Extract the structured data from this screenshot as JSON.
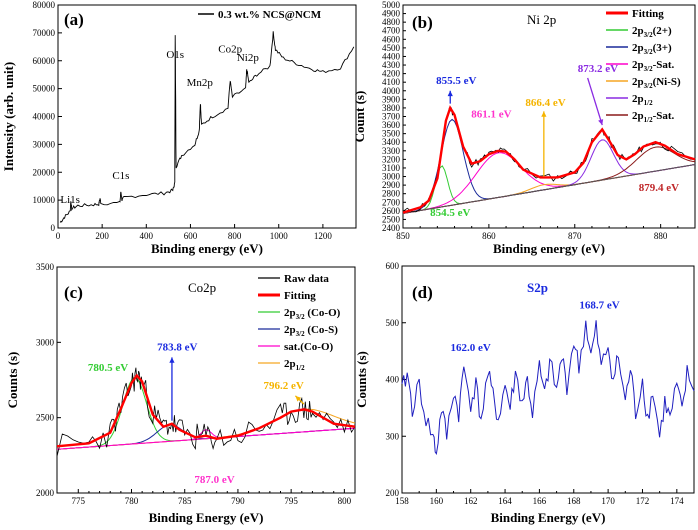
{
  "colors": {
    "black": "#000000",
    "red": "#ff0000",
    "green": "#33cc33",
    "blue": "#1f1fbf",
    "navy": "#1a2a9a",
    "magenta": "#ff00cc",
    "orange": "#f5a623",
    "purple": "#8a2be2",
    "darkred": "#8b1a1a",
    "annGreen": "#33cc33",
    "annBlue": "#1a2adf",
    "annMagenta": "#ff33cc",
    "annOrange": "#f5b400",
    "annPurple": "#8a2be2",
    "annDarkRed": "#c0282a"
  },
  "chart_data": [
    {
      "id": "a",
      "type": "line",
      "panel_label": "(a)",
      "xlabel": "Binding energy (eV)",
      "ylabel": "Intensity (arb. unit)",
      "xlim": [
        0,
        1350
      ],
      "ylim": [
        0,
        80000
      ],
      "xticks": [
        0,
        200,
        400,
        600,
        800,
        1000,
        1200
      ],
      "yticks": [
        0,
        10000,
        20000,
        30000,
        40000,
        50000,
        60000,
        70000,
        80000
      ],
      "legend": [
        "0.3 wt.% NCS@NCM"
      ],
      "series_points": [
        [
          10,
          2000
        ],
        [
          30,
          4000
        ],
        [
          55,
          6000
        ],
        [
          58,
          9500
        ],
        [
          62,
          7000
        ],
        [
          90,
          8000
        ],
        [
          150,
          8300
        ],
        [
          185,
          8600
        ],
        [
          190,
          10500
        ],
        [
          195,
          8800
        ],
        [
          280,
          9000
        ],
        [
          285,
          13000
        ],
        [
          290,
          10000
        ],
        [
          300,
          11000
        ],
        [
          400,
          12000
        ],
        [
          480,
          12500
        ],
        [
          520,
          13500
        ],
        [
          529,
          16000
        ],
        [
          531,
          69000
        ],
        [
          535,
          22000
        ],
        [
          560,
          26000
        ],
        [
          620,
          30000
        ],
        [
          640,
          35000
        ],
        [
          645,
          45000
        ],
        [
          650,
          37000
        ],
        [
          700,
          40000
        ],
        [
          770,
          43000
        ],
        [
          780,
          53000
        ],
        [
          790,
          47000
        ],
        [
          850,
          50000
        ],
        [
          855,
          57000
        ],
        [
          865,
          52000
        ],
        [
          900,
          55000
        ],
        [
          960,
          58000
        ],
        [
          975,
          70000
        ],
        [
          985,
          64000
        ],
        [
          1020,
          61000
        ],
        [
          1080,
          59000
        ],
        [
          1150,
          57000
        ],
        [
          1200,
          56000
        ],
        [
          1280,
          57500
        ],
        [
          1340,
          65000
        ]
      ],
      "annotations": [
        {
          "text": "Li1s",
          "x": 55,
          "y": 9000
        },
        {
          "text": "C1s",
          "x": 285,
          "y": 17500
        },
        {
          "text": "O1s",
          "x": 531,
          "y": 61000
        },
        {
          "text": "Mn2p",
          "x": 642,
          "y": 51000
        },
        {
          "text": "Co2p",
          "x": 780,
          "y": 63000
        },
        {
          "text": "Ni2p",
          "x": 860,
          "y": 60000
        }
      ]
    },
    {
      "id": "b",
      "type": "line",
      "panel_label": "(b)",
      "title": "Ni 2p",
      "xlabel": "Binding energy (eV)",
      "ylabel": "Count (s)",
      "xlim": [
        850,
        884
      ],
      "ylim": [
        2400,
        5000
      ],
      "xticks": [
        850,
        860,
        870,
        880
      ],
      "yticks": [
        2400,
        2500,
        2600,
        2700,
        2800,
        2900,
        3000,
        3100,
        3200,
        3300,
        3400,
        3500,
        3600,
        3700,
        3800,
        3900,
        4000,
        4100,
        4200,
        4300,
        4400,
        4500,
        4600,
        4700,
        4800,
        4900,
        5000
      ],
      "baseline": [
        [
          850,
          2570
        ],
        [
          884,
          3140
        ]
      ],
      "fitting": [
        [
          850,
          2580
        ],
        [
          852,
          2640
        ],
        [
          853,
          2720
        ],
        [
          854,
          2980
        ],
        [
          855,
          3650
        ],
        [
          855.5,
          3800
        ],
        [
          856,
          3720
        ],
        [
          857,
          3350
        ],
        [
          858,
          3150
        ],
        [
          859,
          3180
        ],
        [
          860,
          3260
        ],
        [
          861.1,
          3300
        ],
        [
          862,
          3290
        ],
        [
          863,
          3200
        ],
        [
          864,
          3080
        ],
        [
          866,
          2990
        ],
        [
          868,
          2990
        ],
        [
          870,
          3050
        ],
        [
          871,
          3160
        ],
        [
          872,
          3400
        ],
        [
          873.2,
          3550
        ],
        [
          874,
          3420
        ],
        [
          875,
          3250
        ],
        [
          876,
          3200
        ],
        [
          877,
          3260
        ],
        [
          878,
          3350
        ],
        [
          879.4,
          3400
        ],
        [
          880.5,
          3360
        ],
        [
          882,
          3260
        ],
        [
          884,
          3200
        ]
      ],
      "legend": [
        "Fitting",
        "2p3/2(2+)",
        "2p3/2(3+)",
        "2p3/2-Sat.",
        "2p3/2(Ni-S)",
        "2p1/2",
        "2p1/2-Sat."
      ],
      "annotations": [
        {
          "text": "855.5 eV",
          "x": 856.2,
          "y": 4080
        },
        {
          "text": "861.1 eV",
          "x": 860.3,
          "y": 3690
        },
        {
          "text": "866.4 eV",
          "x": 866.6,
          "y": 3820
        },
        {
          "text": "873.2 eV",
          "x": 872.7,
          "y": 4220
        },
        {
          "text": "854.5 eV",
          "x": 855.5,
          "y": 2540
        },
        {
          "text": "879.4 eV",
          "x": 879.8,
          "y": 2830
        }
      ]
    },
    {
      "id": "c",
      "type": "line",
      "panel_label": "(c)",
      "title": "Co2p",
      "xlabel": "Binding Energy (eV)",
      "ylabel": "Counts (s)",
      "xlim": [
        773,
        801
      ],
      "ylim": [
        2000,
        3500
      ],
      "xticks": [
        775,
        780,
        785,
        790,
        795,
        800
      ],
      "yticks": [
        2000,
        2500,
        3000,
        3500
      ],
      "baseline": [
        [
          773,
          2290
        ],
        [
          801,
          2430
        ]
      ],
      "fitting": [
        [
          773,
          2310
        ],
        [
          776,
          2330
        ],
        [
          778,
          2400
        ],
        [
          779,
          2560
        ],
        [
          780,
          2730
        ],
        [
          780.5,
          2780
        ],
        [
          781,
          2740
        ],
        [
          782,
          2520
        ],
        [
          783,
          2440
        ],
        [
          783.8,
          2460
        ],
        [
          784.5,
          2420
        ],
        [
          786,
          2370
        ],
        [
          787,
          2380
        ],
        [
          788,
          2360
        ],
        [
          790,
          2380
        ],
        [
          792,
          2430
        ],
        [
          794,
          2500
        ],
        [
          795,
          2540
        ],
        [
          796.2,
          2555
        ],
        [
          797,
          2540
        ],
        [
          799,
          2460
        ],
        [
          801,
          2440
        ]
      ],
      "legend": [
        "Raw data",
        "Fitting",
        "2p3/2 (Co-O)",
        "2p3/2 (Co-S)",
        "sat.(Co-O)",
        "2p1/2"
      ],
      "annotations": [
        {
          "text": "780.5 eV",
          "x": 777.8,
          "y": 2810
        },
        {
          "text": "783.8 eV",
          "x": 784.3,
          "y": 2945
        },
        {
          "text": "796.2 eV",
          "x": 794.3,
          "y": 2690
        },
        {
          "text": "787.0 eV",
          "x": 787.8,
          "y": 2065
        }
      ]
    },
    {
      "id": "d",
      "type": "line",
      "panel_label": "(d)",
      "title": "S2p",
      "xlabel": "Binding Energy (eV)",
      "ylabel": "Counts (s)",
      "xlim": [
        158,
        175
      ],
      "ylim": [
        200,
        600
      ],
      "xticks": [
        158,
        160,
        162,
        164,
        166,
        168,
        170,
        172,
        174
      ],
      "yticks": [
        200,
        300,
        400,
        500,
        600
      ],
      "series_points": [
        [
          158,
          380
        ],
        [
          158.3,
          410
        ],
        [
          158.6,
          350
        ],
        [
          159,
          390
        ],
        [
          159.4,
          330
        ],
        [
          159.8,
          300
        ],
        [
          160,
          270
        ],
        [
          160.3,
          350
        ],
        [
          160.6,
          300
        ],
        [
          161,
          380
        ],
        [
          161.3,
          340
        ],
        [
          161.6,
          420
        ],
        [
          162,
          360
        ],
        [
          162.3,
          390
        ],
        [
          162.6,
          330
        ],
        [
          163,
          410
        ],
        [
          163.3,
          370
        ],
        [
          163.6,
          330
        ],
        [
          164,
          390
        ],
        [
          164.3,
          350
        ],
        [
          164.6,
          410
        ],
        [
          165,
          360
        ],
        [
          165.3,
          400
        ],
        [
          165.6,
          340
        ],
        [
          166,
          420
        ],
        [
          166.3,
          370
        ],
        [
          166.6,
          430
        ],
        [
          167,
          380
        ],
        [
          167.3,
          440
        ],
        [
          167.6,
          390
        ],
        [
          168,
          470
        ],
        [
          168.3,
          420
        ],
        [
          168.7,
          500
        ],
        [
          169,
          440
        ],
        [
          169.3,
          490
        ],
        [
          169.6,
          420
        ],
        [
          170,
          460
        ],
        [
          170.3,
          400
        ],
        [
          170.6,
          440
        ],
        [
          171,
          360
        ],
        [
          171.3,
          420
        ],
        [
          171.6,
          340
        ],
        [
          172,
          400
        ],
        [
          172.3,
          330
        ],
        [
          172.6,
          380
        ],
        [
          173,
          300
        ],
        [
          173.3,
          360
        ],
        [
          173.6,
          330
        ],
        [
          174,
          390
        ],
        [
          174.3,
          340
        ],
        [
          174.6,
          410
        ],
        [
          175,
          380
        ]
      ],
      "annotations": [
        {
          "text": "162.0 eV",
          "x": 162,
          "y": 450
        },
        {
          "text": "168.7 eV",
          "x": 169.5,
          "y": 525
        }
      ]
    }
  ]
}
